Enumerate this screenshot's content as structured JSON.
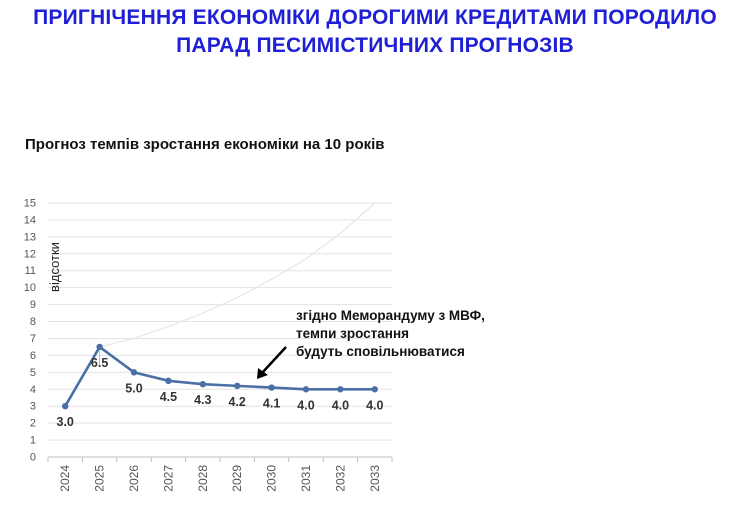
{
  "slide": {
    "title_line1": "ПРИГНІЧЕННЯ ЕКОНОМІКИ ДОРОГИМИ КРЕДИТАМИ ПОРОДИЛО",
    "title_line2": "ПАРАД ПЕСИМІСТИЧНИХ ПРОГНОЗІВ",
    "title_color": "#1f1fd6"
  },
  "annotation": {
    "line1": "згідно Меморандуму з МВФ,",
    "line2": "темпи зростання",
    "line3": "будуть сповільнюватися"
  },
  "chart_data": {
    "type": "line",
    "title": "Прогноз темпів зростання економіки на 10 років",
    "ylabel": "відсотки",
    "xlabel": "",
    "categories": [
      "2024",
      "2025",
      "2026",
      "2027",
      "2028",
      "2029",
      "2030",
      "2031",
      "2032",
      "2033"
    ],
    "series": [
      {
        "values": [
          3.0,
          6.5,
          5.0,
          4.5,
          4.3,
          4.2,
          4.1,
          4.0,
          4.0,
          4.0
        ],
        "labels": [
          "3.0",
          "6.5",
          "5.0",
          "4.5",
          "4.3",
          "4.2",
          "4.1",
          "4.0",
          "4.0",
          "4.0"
        ],
        "color": "#4a6fa5"
      }
    ],
    "faint_curve": {
      "x": [
        "2025",
        "2026",
        "2027",
        "2028",
        "2029",
        "2030",
        "2031",
        "2032",
        "2033"
      ],
      "values": [
        6.5,
        7.0,
        7.7,
        8.5,
        9.4,
        10.5,
        11.7,
        13.2,
        15.0
      ],
      "color": "#e6e6e6"
    },
    "ylim": [
      0,
      15
    ],
    "yticks": [
      "0",
      "1",
      "2",
      "3",
      "4",
      "5",
      "6",
      "7",
      "8",
      "9",
      "10",
      "11",
      "12",
      "13",
      "14",
      "15"
    ],
    "grid": true
  }
}
